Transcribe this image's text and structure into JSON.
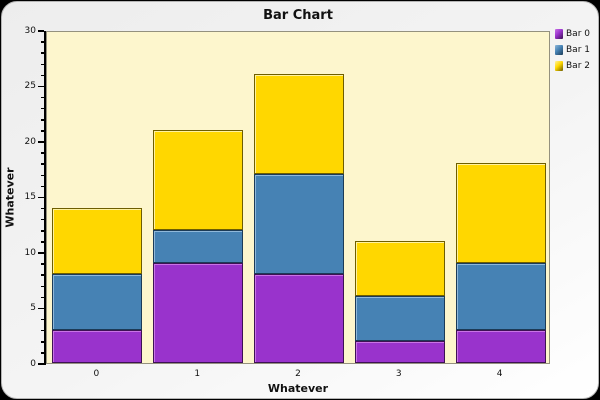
{
  "window": {
    "background": "#000000",
    "panel_background": "#f2f2f2",
    "panel_border": "#b5b5b5"
  },
  "chart_data": {
    "type": "bar",
    "stacked": true,
    "title": "Bar Chart",
    "xlabel": "Whatever",
    "ylabel": "Whatever",
    "categories": [
      "0",
      "1",
      "2",
      "3",
      "4"
    ],
    "series": [
      {
        "name": "Bar 0",
        "color": "#9933CC",
        "highlight": "#C973E6",
        "shadow": "#3d1254",
        "values": [
          3,
          9,
          8,
          2,
          3
        ]
      },
      {
        "name": "Bar 1",
        "color": "#4682B4",
        "highlight": "#8fb8da",
        "shadow": "#1c3b57",
        "values": [
          5,
          3,
          9,
          4,
          6
        ]
      },
      {
        "name": "Bar 2",
        "color": "#FFD700",
        "highlight": "#fff2a0",
        "shadow": "#6e5e00",
        "values": [
          6,
          9,
          9,
          5,
          9
        ]
      }
    ],
    "stack_totals": [
      14,
      21,
      26,
      11,
      18
    ],
    "ylim": [
      0,
      30
    ],
    "y_major_ticks": [
      0,
      5,
      10,
      15,
      20,
      25,
      30
    ],
    "y_minor_step": 1,
    "grid": false,
    "legend_position": "top-right",
    "plot_background": "#FDF6CD",
    "axis_color": "#000000"
  }
}
